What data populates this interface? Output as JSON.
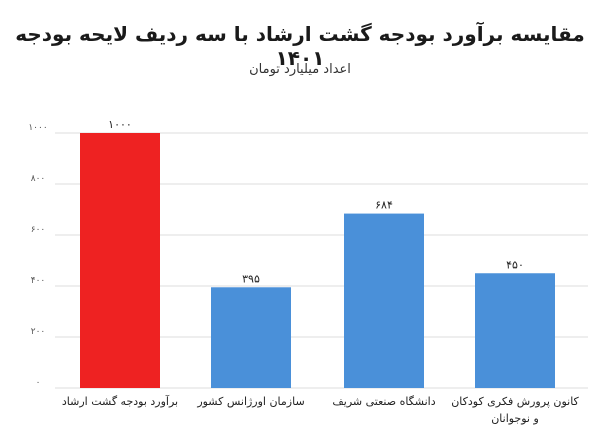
{
  "chart_data": {
    "type": "bar",
    "title": "مقایسه برآورد بودجه گشت ارشاد با سه ردیف لایحه بودجه ۱۴۰۱",
    "subtitle": "اعداد میلیارد تومان",
    "xlabel": "",
    "ylabel": "",
    "ylim": [
      0,
      1000
    ],
    "grid": true,
    "y_ticks": [
      0,
      200,
      400,
      600,
      800,
      1000
    ],
    "y_tick_labels": [
      "۰",
      "۲۰۰",
      "۴۰۰",
      "۶۰۰",
      "۸۰۰",
      "۱۰۰۰"
    ],
    "categories": [
      "برآورد بودجه گشت ارشاد",
      "سازمان اورژانس کشور",
      "دانشگاه صنعتی شریف",
      "کانون پرورش فکری کودکان و نوجوانان"
    ],
    "category_lines": [
      [
        "برآورد بودجه گشت ارشاد"
      ],
      [
        "سازمان اورژانس کشور"
      ],
      [
        "دانشگاه صنعتی شریف"
      ],
      [
        "کانون پرورش فکری کودکان",
        "و نوجوانان"
      ]
    ],
    "values": [
      1000,
      395,
      684,
      450
    ],
    "value_labels": [
      "۱۰۰۰",
      "۳۹۵",
      "۶۸۴",
      "۴۵۰"
    ],
    "colors": [
      "#ee2222",
      "#4a90d9",
      "#4a90d9",
      "#4a90d9"
    ],
    "grid_color": "#dcdcdc"
  }
}
